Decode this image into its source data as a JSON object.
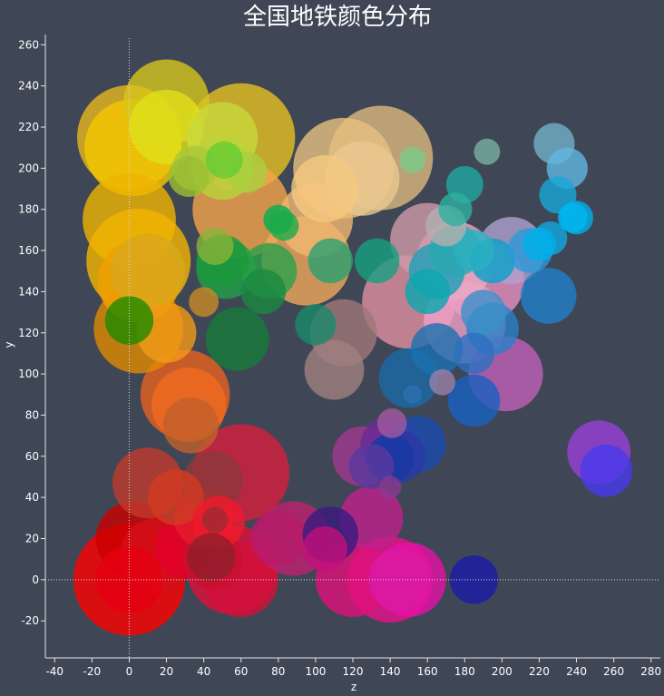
{
  "chart_data": {
    "type": "scatter",
    "title": "全国地铁颜色分布",
    "xlabel": "z",
    "ylabel": "y",
    "xlim": [
      -45,
      285
    ],
    "ylim": [
      -38,
      265
    ],
    "xticks": [
      -40,
      -20,
      0,
      20,
      40,
      60,
      80,
      100,
      120,
      140,
      160,
      180,
      200,
      220,
      240,
      260,
      280
    ],
    "yticks": [
      -20,
      0,
      20,
      40,
      60,
      80,
      100,
      120,
      140,
      160,
      180,
      200,
      220,
      240,
      260
    ],
    "grid": false,
    "legend": "none",
    "points": [
      {
        "x": 0,
        "y": 0,
        "r": 30,
        "color": "#ff0000"
      },
      {
        "x": 0,
        "y": 0,
        "r": 18,
        "color": "#e60012"
      },
      {
        "x": 2,
        "y": 20,
        "r": 20,
        "color": "#cc0000"
      },
      {
        "x": 15,
        "y": 12,
        "r": 20,
        "color": "#d3101b"
      },
      {
        "x": 30,
        "y": 15,
        "r": 16,
        "color": "#e4002b"
      },
      {
        "x": 45,
        "y": 10,
        "r": 16,
        "color": "#c8102e"
      },
      {
        "x": 55,
        "y": 5,
        "r": 24,
        "color": "#e0103c"
      },
      {
        "x": 60,
        "y": 0,
        "r": 20,
        "color": "#d40f3a"
      },
      {
        "x": 40,
        "y": 30,
        "r": 16,
        "color": "#e61c2b"
      },
      {
        "x": 48,
        "y": 28,
        "r": 14,
        "color": "#f01a2c"
      },
      {
        "x": 46,
        "y": 29,
        "r": 7,
        "color": "#9e2a33"
      },
      {
        "x": 44,
        "y": 11,
        "r": 13,
        "color": "#8f1f2c"
      },
      {
        "x": 60,
        "y": 52,
        "r": 26,
        "color": "#d81e3c"
      },
      {
        "x": 45,
        "y": 48,
        "r": 16,
        "color": "#8c3a3a"
      },
      {
        "x": 10,
        "y": 47,
        "r": 19,
        "color": "#c03a2b"
      },
      {
        "x": 25,
        "y": 40,
        "r": 15,
        "color": "#d43a22"
      },
      {
        "x": 30,
        "y": 90,
        "r": 24,
        "color": "#e8621e"
      },
      {
        "x": 32,
        "y": 85,
        "r": 20,
        "color": "#f06a1f"
      },
      {
        "x": 33,
        "y": 75,
        "r": 15,
        "color": "#c0602a"
      },
      {
        "x": 5,
        "y": 122,
        "r": 24,
        "color": "#e08a00"
      },
      {
        "x": 20,
        "y": 120,
        "r": 16,
        "color": "#f29a16"
      },
      {
        "x": 40,
        "y": 135,
        "r": 8,
        "color": "#c98a26"
      },
      {
        "x": 0,
        "y": 126,
        "r": 13,
        "color": "#1e8a00"
      },
      {
        "x": 58,
        "y": 117,
        "r": 17,
        "color": "#167a3a"
      },
      {
        "x": 5,
        "y": 145,
        "r": 22,
        "color": "#f0a000"
      },
      {
        "x": 5,
        "y": 155,
        "r": 28,
        "color": "#f5b400"
      },
      {
        "x": 10,
        "y": 150,
        "r": 20,
        "color": "#d9a81e"
      },
      {
        "x": 0,
        "y": 175,
        "r": 25,
        "color": "#f0b400"
      },
      {
        "x": 0,
        "y": 215,
        "r": 28,
        "color": "#e8b81e"
      },
      {
        "x": 2,
        "y": 210,
        "r": 26,
        "color": "#f5c800"
      },
      {
        "x": 20,
        "y": 232,
        "r": 23,
        "color": "#d6c61c"
      },
      {
        "x": 20,
        "y": 220,
        "r": 20,
        "color": "#e0e01a"
      },
      {
        "x": 60,
        "y": 215,
        "r": 29,
        "color": "#e6c021"
      },
      {
        "x": 50,
        "y": 215,
        "r": 19,
        "color": "#c8d83c"
      },
      {
        "x": 50,
        "y": 200,
        "r": 17,
        "color": "#b7d43a"
      },
      {
        "x": 63,
        "y": 198,
        "r": 11,
        "color": "#a8d040"
      },
      {
        "x": 35,
        "y": 200,
        "r": 12,
        "color": "#a8c83a"
      },
      {
        "x": 32,
        "y": 196,
        "r": 11,
        "color": "#9cc032"
      },
      {
        "x": 51,
        "y": 204,
        "r": 10,
        "color": "#66cc33"
      },
      {
        "x": 60,
        "y": 180,
        "r": 26,
        "color": "#f5a44a"
      },
      {
        "x": 46,
        "y": 162,
        "r": 10,
        "color": "#8ab43a"
      },
      {
        "x": 52,
        "y": 151,
        "r": 16,
        "color": "#22a04a"
      },
      {
        "x": 50,
        "y": 155,
        "r": 14,
        "color": "#1a9a3a"
      },
      {
        "x": 75,
        "y": 150,
        "r": 15,
        "color": "#2aa048"
      },
      {
        "x": 72,
        "y": 140,
        "r": 12,
        "color": "#1a8a40"
      },
      {
        "x": 80,
        "y": 175,
        "r": 8,
        "color": "#00b050"
      },
      {
        "x": 83,
        "y": 172,
        "r": 8,
        "color": "#1caa4a"
      },
      {
        "x": 95,
        "y": 155,
        "r": 24,
        "color": "#f0a85a"
      },
      {
        "x": 100,
        "y": 175,
        "r": 20,
        "color": "#f0b870"
      },
      {
        "x": 105,
        "y": 190,
        "r": 18,
        "color": "#f5c880"
      },
      {
        "x": 115,
        "y": 200,
        "r": 27,
        "color": "#e6c080"
      },
      {
        "x": 135,
        "y": 205,
        "r": 28,
        "color": "#dcb880"
      },
      {
        "x": 125,
        "y": 195,
        "r": 20,
        "color": "#e8c890"
      },
      {
        "x": 108,
        "y": 155,
        "r": 12,
        "color": "#2aa070"
      },
      {
        "x": 133,
        "y": 155,
        "r": 12,
        "color": "#18a080"
      },
      {
        "x": 152,
        "y": 204,
        "r": 7,
        "color": "#7acc8a"
      },
      {
        "x": 100,
        "y": 124,
        "r": 11,
        "color": "#1a8a6a"
      },
      {
        "x": 115,
        "y": 120,
        "r": 18,
        "color": "#a07878"
      },
      {
        "x": 110,
        "y": 102,
        "r": 16,
        "color": "#a08080"
      },
      {
        "x": 150,
        "y": 135,
        "r": 25,
        "color": "#e090a0"
      },
      {
        "x": 160,
        "y": 165,
        "r": 20,
        "color": "#d09aa8"
      },
      {
        "x": 175,
        "y": 155,
        "r": 21,
        "color": "#e8a8c0"
      },
      {
        "x": 205,
        "y": 160,
        "r": 18,
        "color": "#b0a0d0"
      },
      {
        "x": 190,
        "y": 145,
        "r": 22,
        "color": "#e890c0"
      },
      {
        "x": 180,
        "y": 125,
        "r": 22,
        "color": "#f0a0c8"
      },
      {
        "x": 202,
        "y": 100,
        "r": 20,
        "color": "#c060b8"
      },
      {
        "x": 190,
        "y": 130,
        "r": 12,
        "color": "#3a90c8"
      },
      {
        "x": 195,
        "y": 122,
        "r": 14,
        "color": "#2a80c8"
      },
      {
        "x": 185,
        "y": 110,
        "r": 11,
        "color": "#2a70c0"
      },
      {
        "x": 185,
        "y": 87,
        "r": 14,
        "color": "#1a60c0"
      },
      {
        "x": 165,
        "y": 112,
        "r": 14,
        "color": "#1a70b0"
      },
      {
        "x": 150,
        "y": 98,
        "r": 16,
        "color": "#1a6aa8"
      },
      {
        "x": 168,
        "y": 96,
        "r": 7,
        "color": "#9a80a8"
      },
      {
        "x": 152,
        "y": 90,
        "r": 5,
        "color": "#2a70b0"
      },
      {
        "x": 160,
        "y": 140,
        "r": 12,
        "color": "#0aa8b0"
      },
      {
        "x": 165,
        "y": 150,
        "r": 15,
        "color": "#1aa0b8"
      },
      {
        "x": 175,
        "y": 160,
        "r": 14,
        "color": "#28a8b0"
      },
      {
        "x": 185,
        "y": 160,
        "r": 11,
        "color": "#2ab0c0"
      },
      {
        "x": 195,
        "y": 155,
        "r": 12,
        "color": "#0aa0c8"
      },
      {
        "x": 215,
        "y": 160,
        "r": 12,
        "color": "#2a9ad8"
      },
      {
        "x": 225,
        "y": 138,
        "r": 15,
        "color": "#2080c8"
      },
      {
        "x": 170,
        "y": 172,
        "r": 11,
        "color": "#b0b0b0"
      },
      {
        "x": 175,
        "y": 180,
        "r": 9,
        "color": "#30b0a0"
      },
      {
        "x": 180,
        "y": 192,
        "r": 10,
        "color": "#20a8a0"
      },
      {
        "x": 192,
        "y": 208,
        "r": 7,
        "color": "#7ab0a0"
      },
      {
        "x": 228,
        "y": 212,
        "r": 11,
        "color": "#70b0c8"
      },
      {
        "x": 235,
        "y": 200,
        "r": 11,
        "color": "#60b8e0"
      },
      {
        "x": 230,
        "y": 187,
        "r": 10,
        "color": "#18a8d8"
      },
      {
        "x": 240,
        "y": 176,
        "r": 9,
        "color": "#00b0e8"
      },
      {
        "x": 238,
        "y": 176,
        "r": 8,
        "color": "#00b8f0"
      },
      {
        "x": 226,
        "y": 166,
        "r": 9,
        "color": "#10a8e0"
      },
      {
        "x": 220,
        "y": 163,
        "r": 9,
        "color": "#00b0e8"
      },
      {
        "x": 125,
        "y": 60,
        "r": 16,
        "color": "#a03890"
      },
      {
        "x": 140,
        "y": 65,
        "r": 16,
        "color": "#6a2a98"
      },
      {
        "x": 155,
        "y": 66,
        "r": 15,
        "color": "#1a4ab0"
      },
      {
        "x": 145,
        "y": 60,
        "r": 14,
        "color": "#2a3aa8"
      },
      {
        "x": 140,
        "y": 59,
        "r": 13,
        "color": "#1838a0"
      },
      {
        "x": 130,
        "y": 55,
        "r": 12,
        "color": "#5a3aa0"
      },
      {
        "x": 140,
        "y": 45,
        "r": 6,
        "color": "#8a3a90"
      },
      {
        "x": 141,
        "y": 76,
        "r": 8,
        "color": "#a05aa0"
      },
      {
        "x": 130,
        "y": 30,
        "r": 17,
        "color": "#c0208c"
      },
      {
        "x": 120,
        "y": 0,
        "r": 20,
        "color": "#e0107a"
      },
      {
        "x": 140,
        "y": 0,
        "r": 23,
        "color": "#e8108a"
      },
      {
        "x": 150,
        "y": 0,
        "r": 20,
        "color": "#e810a8"
      },
      {
        "x": 145,
        "y": 0,
        "r": 17,
        "color": "#d81aa0"
      },
      {
        "x": 105,
        "y": 15,
        "r": 12,
        "color": "#c0107a"
      },
      {
        "x": 88,
        "y": 20,
        "r": 20,
        "color": "#c02070"
      },
      {
        "x": 80,
        "y": 20,
        "r": 15,
        "color": "#b81a6a"
      },
      {
        "x": 108,
        "y": 22,
        "r": 15,
        "color": "#3a1a80"
      },
      {
        "x": 185,
        "y": 0,
        "r": 13,
        "color": "#1a1aa8"
      },
      {
        "x": 252,
        "y": 62,
        "r": 17,
        "color": "#9a40d8"
      },
      {
        "x": 256,
        "y": 53,
        "r": 14,
        "color": "#4a3aef"
      }
    ]
  }
}
